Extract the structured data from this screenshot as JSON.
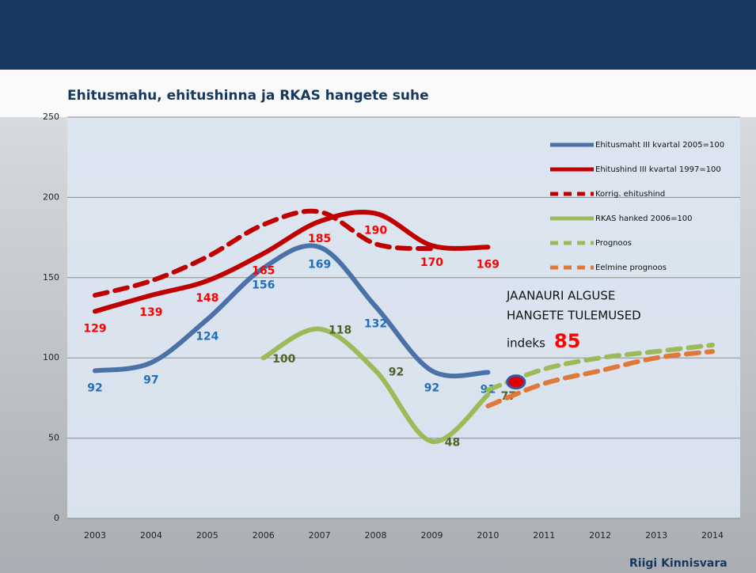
{
  "chart_data": {
    "type": "line",
    "title": "Ehitusmahu, ehitushinna ja RKAS hangete suhe",
    "categories": [
      "2003",
      "2004",
      "2005",
      "2006",
      "2007",
      "2008",
      "2009",
      "2010",
      "2011",
      "2012",
      "2013",
      "2014"
    ],
    "series": [
      {
        "name": "Ehitusmaht III kvartal 2005=100",
        "color": "#4a72a8",
        "dashed": false,
        "data_labels": true,
        "label_color": "#1f6fbd",
        "values": [
          92,
          97,
          124,
          156,
          169,
          132,
          92,
          91,
          null,
          null,
          null,
          null
        ]
      },
      {
        "name": "Ehitushind III kvartal 1997=100",
        "color": "#c00000",
        "dashed": false,
        "data_labels": true,
        "label_color": "#ff0000",
        "values": [
          129,
          139,
          148,
          165,
          185,
          190,
          170,
          169,
          null,
          null,
          null,
          null
        ]
      },
      {
        "name": "Korrig. ehitushind",
        "color": "#c00000",
        "dashed": true,
        "data_labels": false,
        "values": [
          139,
          148,
          163,
          183,
          191,
          171,
          168,
          null,
          null,
          null,
          null,
          null
        ]
      },
      {
        "name": "RKAS hanked 2006=100",
        "color": "#9bbb59",
        "dashed": false,
        "data_labels": true,
        "label_color": "#4f6228",
        "values": [
          null,
          null,
          null,
          100,
          118,
          92,
          48,
          77,
          null,
          null,
          null,
          null
        ]
      },
      {
        "name": "Prognoos",
        "color": "#9bbb59",
        "dashed": true,
        "data_labels": false,
        "values": [
          null,
          null,
          null,
          null,
          null,
          null,
          null,
          80,
          93,
          100,
          104,
          108
        ]
      },
      {
        "name": "Eelmine prognoos",
        "color": "#e0783a",
        "dashed": true,
        "data_labels": false,
        "values": [
          null,
          null,
          null,
          null,
          null,
          null,
          null,
          70,
          84,
          92,
          100,
          104
        ]
      }
    ],
    "ylim": [
      0,
      250
    ],
    "yticks": [
      0,
      50,
      100,
      150,
      200,
      250
    ],
    "grid": true,
    "annotation": {
      "line1": "JAANAURI ALGUSE",
      "line2": "HANGETE TULEMUSED",
      "index_label": "indeks",
      "index_value": 85
    },
    "footer": "Riigi Kinnisvara"
  }
}
